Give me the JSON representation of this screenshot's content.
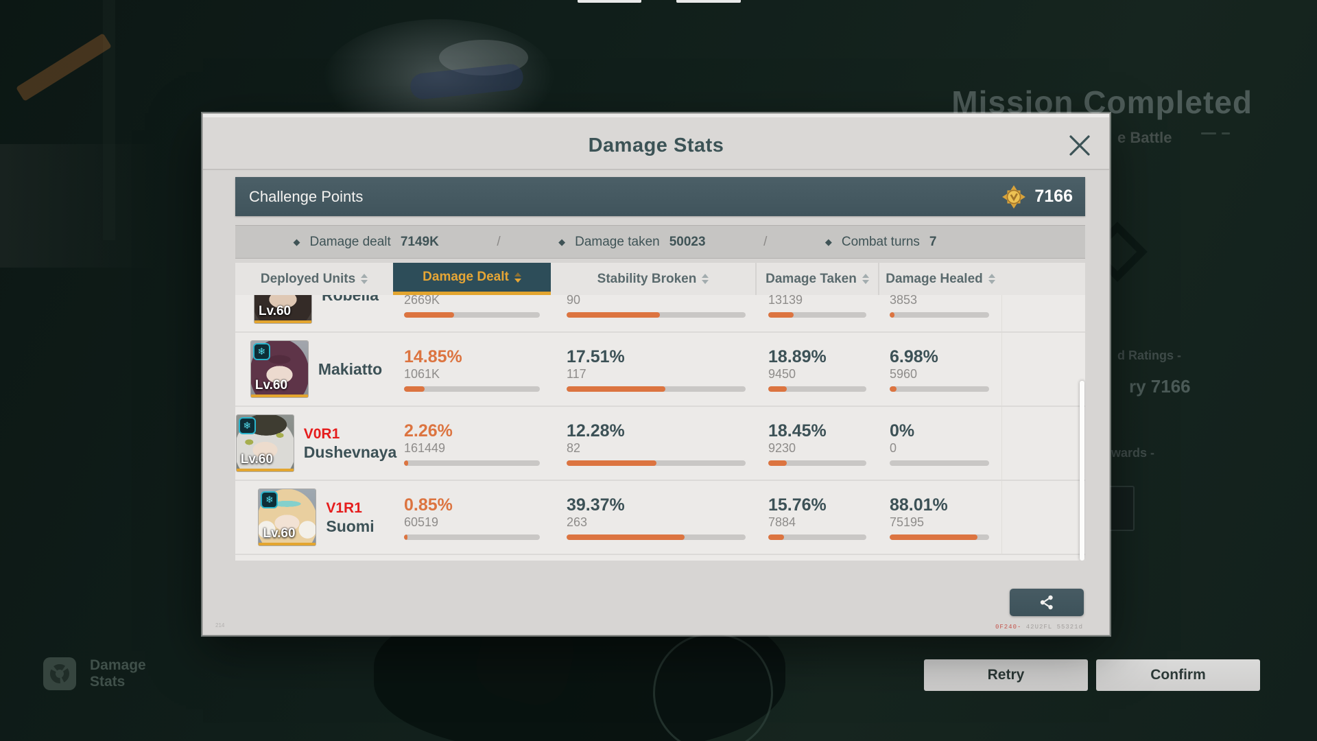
{
  "accent_colors": {
    "orange": "#dc7440",
    "gold": "#e7a635",
    "teal": "#2d4d59",
    "red": "#e51c1c"
  },
  "bg": {
    "mission_title": "Mission Completed",
    "battle_fragment": "e Battle",
    "ratings_fragment": "d Ratings -",
    "points_fragment": "ry 7166",
    "rewards_fragment": "wards -",
    "retry_label": "Retry",
    "confirm_label": "Confirm",
    "legend_line1": "Damage",
    "legend_line2": "Stats"
  },
  "dialog": {
    "title": "Damage Stats",
    "challenge_label": "Challenge Points",
    "challenge_points": "7166",
    "summary_separator": "/",
    "summary": [
      {
        "label": "Damage dealt",
        "value": "7149K"
      },
      {
        "label": "Damage taken",
        "value": "50023"
      },
      {
        "label": "Combat turns",
        "value": "7"
      }
    ],
    "watermark_red": "0F240-",
    "watermark_gray": " 42U2FL 55321d",
    "corner_code": "214"
  },
  "table": {
    "columns": [
      {
        "key": "units",
        "label": "Deployed Units",
        "active": false
      },
      {
        "key": "dd",
        "label": "Damage Dealt",
        "active": true
      },
      {
        "key": "sb",
        "label": "Stability Broken",
        "active": false
      },
      {
        "key": "dt",
        "label": "Damage Taken",
        "active": false
      },
      {
        "key": "dh",
        "label": "Damage Healed",
        "active": false
      }
    ],
    "rows": [
      {
        "name": "Robella",
        "version": "",
        "level": "Lv.60",
        "avatar": "robella",
        "element": "ice",
        "cells": [
          {
            "pct": "",
            "value": "2669K",
            "fill": 37
          },
          {
            "pct": "",
            "value": "90",
            "fill": 52
          },
          {
            "pct": "",
            "value": "13139",
            "fill": 26
          },
          {
            "pct": "",
            "value": "3853",
            "fill": 5
          }
        ]
      },
      {
        "name": "Makiatto",
        "version": "",
        "level": "Lv.60",
        "avatar": "makiatto",
        "element": "ice",
        "cells": [
          {
            "pct": "14.85%",
            "value": "1061K",
            "fill": 15
          },
          {
            "pct": "17.51%",
            "value": "117",
            "fill": 55
          },
          {
            "pct": "18.89%",
            "value": "9450",
            "fill": 19
          },
          {
            "pct": "6.98%",
            "value": "5960",
            "fill": 7
          }
        ]
      },
      {
        "name": "Dushevnaya",
        "version": "V0R1",
        "level": "Lv.60",
        "avatar": "dushevnaya",
        "element": "ice",
        "cells": [
          {
            "pct": "2.26%",
            "value": "161449",
            "fill": 3
          },
          {
            "pct": "12.28%",
            "value": "82",
            "fill": 50
          },
          {
            "pct": "18.45%",
            "value": "9230",
            "fill": 19
          },
          {
            "pct": "0%",
            "value": "0",
            "fill": 0
          }
        ]
      },
      {
        "name": "Suomi",
        "version": "V1R1",
        "level": "Lv.60",
        "avatar": "suomi",
        "element": "ice",
        "cells": [
          {
            "pct": "0.85%",
            "value": "60519",
            "fill": 2
          },
          {
            "pct": "39.37%",
            "value": "263",
            "fill": 66
          },
          {
            "pct": "15.76%",
            "value": "7884",
            "fill": 16
          },
          {
            "pct": "88.01%",
            "value": "75195",
            "fill": 88
          }
        ]
      }
    ]
  }
}
